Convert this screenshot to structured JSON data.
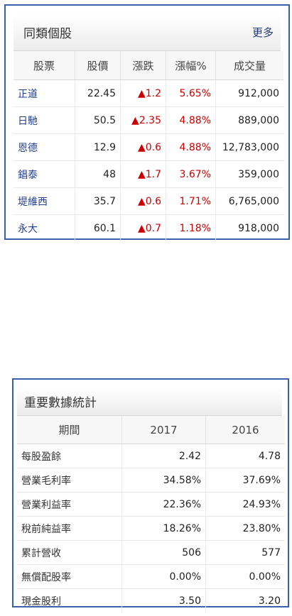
{
  "peer": {
    "title": "同類個股",
    "more": "更多",
    "headers": [
      "股票",
      "股價",
      "漲跌",
      "漲幅%",
      "成交量"
    ],
    "rows": [
      {
        "name": "正道",
        "price": "22.45",
        "change": "▲1.2",
        "pct": "5.65%",
        "vol": "912,000"
      },
      {
        "name": "日馳",
        "price": "50.5",
        "change": "▲2.35",
        "pct": "4.88%",
        "vol": "889,000"
      },
      {
        "name": "恩德",
        "price": "12.9",
        "change": "▲0.6",
        "pct": "4.88%",
        "vol": "12,783,000"
      },
      {
        "name": "錩泰",
        "price": "48",
        "change": "▲1.7",
        "pct": "3.67%",
        "vol": "359,000"
      },
      {
        "name": "堤維西",
        "price": "35.7",
        "change": "▲0.6",
        "pct": "1.71%",
        "vol": "6,765,000"
      },
      {
        "name": "永大",
        "price": "60.1",
        "change": "▲0.7",
        "pct": "1.18%",
        "vol": "918,000"
      }
    ]
  },
  "stats": {
    "title": "重要數據統計",
    "headers": [
      "期間",
      "2017",
      "2016"
    ],
    "rows": [
      {
        "label": "每股盈餘",
        "y2017": "2.42",
        "y2016": "4.78"
      },
      {
        "label": "營業毛利率",
        "y2017": "34.58%",
        "y2016": "37.69%"
      },
      {
        "label": "營業利益率",
        "y2017": "22.36%",
        "y2016": "24.93%"
      },
      {
        "label": "稅前純益率",
        "y2017": "18.26%",
        "y2016": "23.80%"
      },
      {
        "label": "累計營收",
        "y2017": "506",
        "y2016": "577"
      },
      {
        "label": "無償配股率",
        "y2017": "0.00%",
        "y2016": "0.00%"
      },
      {
        "label": "現金股利",
        "y2017": "3.50",
        "y2016": "3.20"
      }
    ]
  },
  "colors": {
    "up": "#cc0000",
    "link": "#23408e",
    "border": "#3b5ea8"
  }
}
